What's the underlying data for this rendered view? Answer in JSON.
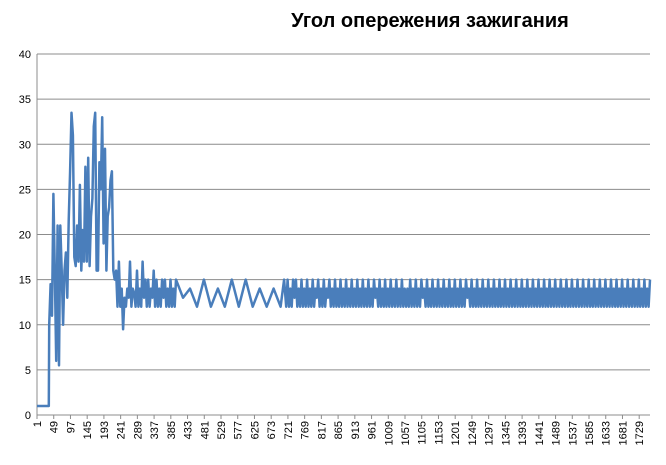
{
  "chart_data": {
    "type": "line",
    "title": "Угол опережения зажигания",
    "xlabel": "",
    "ylabel": "",
    "ylim": [
      0,
      40
    ],
    "xlim": [
      1,
      1760
    ],
    "grid": "horizontal",
    "legend": "none",
    "y_ticks": [
      "0",
      "5",
      "10",
      "15",
      "20",
      "25",
      "30",
      "35",
      "40"
    ],
    "x_ticks": [
      "1",
      "49",
      "97",
      "145",
      "193",
      "241",
      "289",
      "337",
      "385",
      "433",
      "481",
      "529",
      "577",
      "625",
      "673",
      "721",
      "769",
      "817",
      "865",
      "913",
      "961",
      "1009",
      "1057",
      "1105",
      "1153",
      "1201",
      "1249",
      "1297",
      "1345",
      "1393",
      "1441",
      "1489",
      "1537",
      "1585",
      "1633",
      "1681",
      "1729"
    ],
    "colors": {
      "line": "#4a7ebb",
      "grid": "#8c8c8c",
      "axis": "#8c8c8c"
    },
    "series": [
      {
        "name": "",
        "x": [
          1,
          35,
          36,
          40,
          44,
          48,
          52,
          56,
          60,
          64,
          68,
          72,
          76,
          80,
          84,
          88,
          92,
          96,
          100,
          104,
          108,
          112,
          116,
          120,
          124,
          128,
          132,
          136,
          140,
          144,
          148,
          152,
          156,
          160,
          164,
          168,
          172,
          176,
          180,
          184,
          188,
          192,
          196,
          200,
          204,
          208,
          212,
          216,
          220,
          224,
          228,
          232,
          236,
          240,
          244,
          248,
          252,
          256,
          260,
          264,
          268,
          272,
          276,
          280,
          284,
          288,
          292,
          296,
          300,
          304,
          308,
          312,
          316,
          320,
          324,
          328,
          332,
          336,
          340,
          344,
          348,
          352,
          356,
          360,
          364,
          368,
          372,
          376,
          380,
          384,
          388,
          392,
          396,
          400,
          420,
          440,
          460,
          480,
          500,
          520,
          540,
          560,
          580,
          600,
          620,
          640,
          660,
          680,
          700,
          710,
          716,
          720,
          724,
          728,
          732,
          736,
          740,
          744,
          748,
          752,
          756,
          760,
          764,
          768,
          772,
          776,
          780,
          784,
          788,
          792,
          796,
          800,
          804,
          808,
          812,
          816,
          820,
          824,
          828,
          832,
          836,
          840,
          844,
          848,
          852,
          856,
          860,
          864,
          868,
          872,
          876,
          880,
          884,
          888,
          892,
          896,
          900,
          904,
          908,
          912,
          916,
          920,
          924,
          928,
          932,
          936,
          940,
          944,
          948,
          952,
          956,
          960,
          964,
          968,
          972,
          976,
          980,
          984,
          988,
          992,
          996,
          1000,
          1004,
          1008,
          1012,
          1016,
          1020,
          1024,
          1028,
          1032,
          1036,
          1040,
          1044,
          1048,
          1052,
          1056,
          1060,
          1064,
          1068,
          1072,
          1076,
          1080,
          1084,
          1088,
          1092,
          1096,
          1100,
          1104,
          1108,
          1112,
          1116,
          1120,
          1124,
          1128,
          1132,
          1136,
          1140,
          1144,
          1148,
          1152,
          1156,
          1160,
          1164,
          1168,
          1172,
          1176,
          1180,
          1184,
          1188,
          1192,
          1196,
          1200,
          1204,
          1208,
          1212,
          1216,
          1220,
          1224,
          1228,
          1232,
          1236,
          1240,
          1244,
          1248,
          1252,
          1256,
          1260,
          1264,
          1268,
          1272,
          1276,
          1280,
          1284,
          1288,
          1292,
          1296,
          1300,
          1304,
          1308,
          1312,
          1316,
          1320,
          1324,
          1328,
          1332,
          1336,
          1340,
          1344,
          1348,
          1352,
          1356,
          1360,
          1364,
          1368,
          1372,
          1376,
          1380,
          1384,
          1388,
          1392,
          1396,
          1400,
          1404,
          1408,
          1412,
          1416,
          1420,
          1424,
          1428,
          1432,
          1436,
          1440,
          1444,
          1448,
          1452,
          1456,
          1460,
          1464,
          1468,
          1472,
          1476,
          1480,
          1484,
          1488,
          1492,
          1496,
          1500,
          1504,
          1508,
          1512,
          1516,
          1520,
          1524,
          1528,
          1532,
          1536,
          1540,
          1544,
          1548,
          1552,
          1556,
          1560,
          1564,
          1568,
          1572,
          1576,
          1580,
          1584,
          1588,
          1592,
          1596,
          1600,
          1604,
          1608,
          1612,
          1616,
          1620,
          1624,
          1628,
          1632,
          1636,
          1640,
          1644,
          1648,
          1652,
          1656,
          1660,
          1664,
          1668,
          1672,
          1676,
          1680,
          1684,
          1688,
          1692,
          1696,
          1700,
          1704,
          1708,
          1712,
          1716,
          1720,
          1724,
          1728,
          1732,
          1736,
          1740,
          1744,
          1748,
          1752,
          1756,
          1760
        ],
        "values": [
          1,
          1,
          10,
          14.5,
          11,
          24.5,
          16,
          6,
          21,
          5.5,
          21,
          16,
          10,
          16,
          18,
          13,
          21.5,
          27,
          33.5,
          31,
          17.5,
          16.5,
          21,
          17,
          25.5,
          16,
          20.5,
          17,
          27.5,
          17,
          28.5,
          16.5,
          22,
          24,
          32,
          33.5,
          16,
          16,
          28,
          25,
          33,
          19,
          29.5,
          16,
          22,
          23,
          26,
          27,
          16,
          15,
          16,
          12,
          17,
          12,
          14,
          9.5,
          13,
          12,
          14,
          13,
          17,
          12,
          14,
          13.5,
          12,
          16,
          12,
          14,
          12,
          17,
          13,
          15,
          12,
          15,
          12,
          14,
          13,
          16,
          12,
          15,
          12,
          14,
          12,
          15,
          13,
          15,
          12,
          14,
          12,
          15,
          12,
          14,
          12,
          15,
          13,
          14,
          12,
          15,
          12,
          14,
          12,
          15,
          12,
          15,
          12,
          14,
          12,
          14,
          12,
          15,
          12,
          15,
          12,
          14,
          12,
          15,
          13,
          15,
          12,
          14,
          12,
          15,
          12,
          14,
          12,
          15,
          12,
          14,
          12,
          15,
          12,
          14,
          13,
          15,
          12,
          14,
          12,
          15,
          12,
          14,
          13,
          15,
          12,
          14,
          12,
          15,
          12,
          14,
          12,
          15,
          12,
          14,
          12,
          15,
          12,
          14,
          12,
          15,
          12,
          14,
          12,
          15,
          12,
          14,
          12,
          15,
          12,
          14,
          12,
          15,
          12,
          14,
          12,
          15,
          13,
          14,
          12,
          15,
          12,
          14,
          12,
          15,
          12,
          14,
          12,
          15,
          12,
          14,
          12,
          15,
          12,
          14,
          12,
          15,
          12,
          14,
          12,
          14,
          12,
          15,
          12,
          14,
          12,
          15,
          12,
          14,
          12,
          15,
          13,
          14,
          12,
          15,
          12,
          14,
          12,
          15,
          12,
          14,
          12,
          15,
          12,
          14,
          12,
          15,
          12,
          14,
          12,
          15,
          12,
          14,
          12,
          15,
          12,
          14,
          12,
          15,
          12,
          14,
          12,
          15,
          13,
          14,
          12,
          15,
          12,
          14,
          12,
          15,
          12,
          14,
          12,
          15,
          12,
          14,
          12,
          15,
          12,
          14,
          12,
          15,
          12,
          14,
          12,
          15,
          12,
          14,
          12,
          15,
          12,
          14,
          12,
          15,
          12,
          14,
          12,
          15,
          12,
          14,
          12,
          15,
          12,
          14,
          12,
          15,
          12,
          14,
          12,
          15,
          12,
          14,
          12,
          15,
          12,
          14,
          12,
          15,
          12,
          14,
          12,
          15,
          12,
          14,
          12,
          15,
          12,
          14,
          12,
          15,
          12,
          14,
          12,
          15,
          12,
          14,
          12,
          15,
          12,
          14,
          12,
          15,
          12,
          14,
          12,
          15,
          12,
          14,
          12,
          15,
          12,
          14,
          12,
          15,
          12,
          14,
          12,
          15,
          12,
          14,
          12,
          15,
          12,
          14,
          12,
          15,
          12,
          14,
          12,
          15,
          12,
          14,
          12,
          15,
          12,
          14,
          12,
          15,
          12,
          14,
          12,
          15,
          12,
          14,
          12,
          15,
          12,
          14,
          12,
          15,
          12,
          14,
          12,
          15
        ]
      }
    ]
  }
}
